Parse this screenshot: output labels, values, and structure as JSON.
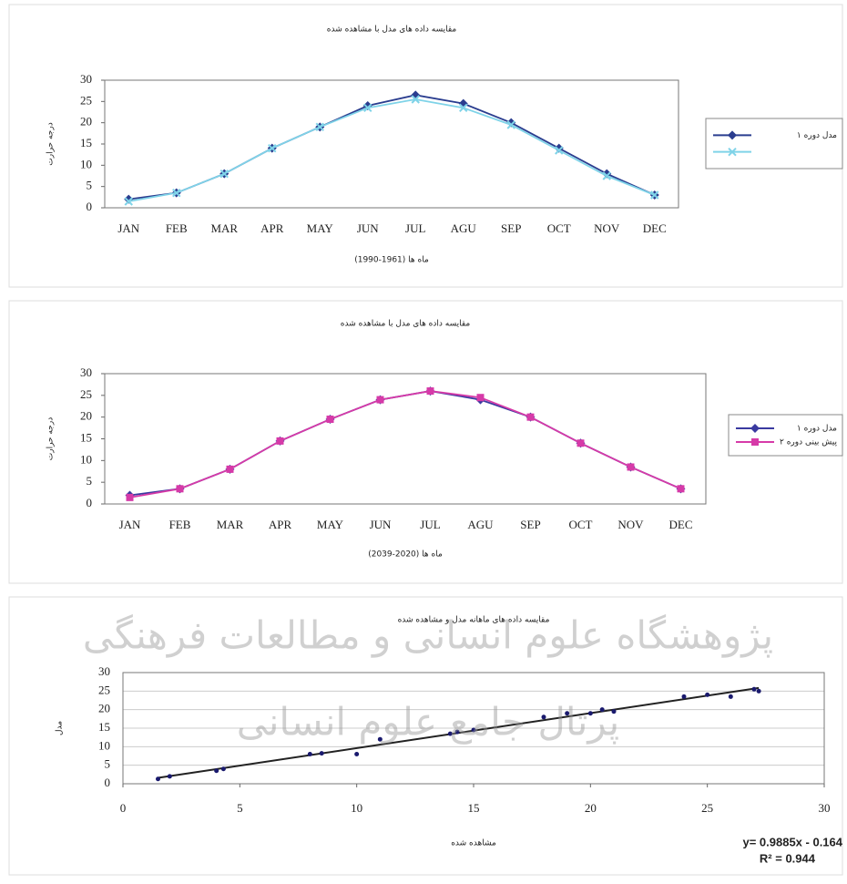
{
  "chart_data": [
    {
      "type": "line",
      "title": "مقایسه داده های مدل با مشاهده شده",
      "y_label": "درجه حرارت",
      "x_label": "ماه ها (1961-1990)",
      "categories": [
        "JAN",
        "FEB",
        "MAR",
        "APR",
        "MAY",
        "JUN",
        "JUL",
        "AGU",
        "SEP",
        "OCT",
        "NOV",
        "DEC"
      ],
      "series": [
        {
          "name": "مدل دوره ۱",
          "color": "#2a3d8f",
          "marker": "diamond",
          "values": [
            2,
            3.5,
            8,
            14,
            19,
            24,
            26.5,
            24.5,
            20,
            14,
            8,
            3
          ]
        },
        {
          "color": "#7fd3e8",
          "marker": "cross",
          "values": [
            1.5,
            3.5,
            8,
            14,
            19,
            23.5,
            25.5,
            23.5,
            19.5,
            13.5,
            7.5,
            3
          ]
        }
      ],
      "ylim": [
        0,
        30
      ],
      "yticks": [
        0,
        5,
        10,
        15,
        20,
        25,
        30
      ],
      "grid": false,
      "legend": "right"
    },
    {
      "type": "line",
      "title": "مقایسه داده های مدل با مشاهده شده",
      "y_label": "درجه حرارت",
      "x_label": "ماه ها (2020-2039)",
      "categories": [
        "JAN",
        "FEB",
        "MAR",
        "APR",
        "MAY",
        "JUN",
        "JUL",
        "AGU",
        "SEP",
        "OCT",
        "NOV",
        "DEC"
      ],
      "series": [
        {
          "name": "مدل دوره ۱",
          "color": "#3a3aa0",
          "marker": "diamond",
          "values": [
            2,
            3.5,
            8,
            14.5,
            19.5,
            24,
            26,
            24,
            20,
            14,
            8.5,
            3.5
          ]
        },
        {
          "name": "پیش بینی دوره ۲",
          "color": "#d63aa8",
          "marker": "square",
          "values": [
            1.5,
            3.5,
            8,
            14.5,
            19.5,
            24,
            26,
            24.5,
            20,
            14,
            8.5,
            3.5
          ]
        }
      ],
      "ylim": [
        0,
        30
      ],
      "yticks": [
        0,
        5,
        10,
        15,
        20,
        25,
        30
      ],
      "grid": false,
      "legend": "right"
    },
    {
      "type": "scatter",
      "title": "مقایسه داده های ماهانه مدل و مشاهده شده",
      "y_label": "مدل",
      "x_label": "مشاهده شده",
      "x": [
        1.5,
        2,
        4,
        4.3,
        8,
        8.5,
        10,
        11,
        14,
        14.3,
        15,
        18,
        19,
        20,
        20.5,
        21,
        24,
        25,
        26,
        27,
        27.2
      ],
      "values": [
        1.3,
        2,
        3.5,
        4,
        8,
        8.2,
        8,
        12,
        13.5,
        14,
        14.5,
        18,
        19,
        19,
        20,
        19.5,
        23.5,
        24,
        23.5,
        25.5,
        25
      ],
      "color": "#1a1a6e",
      "trendline": true,
      "trendline_color": "#222222",
      "equation": "y= 0.9885x - 0.164",
      "r_squared": "R² = 0.944",
      "xlim": [
        0,
        30
      ],
      "xticks": [
        0,
        5,
        10,
        15,
        20,
        25,
        30
      ],
      "ylim": [
        0,
        30
      ],
      "yticks": [
        0,
        5,
        10,
        15,
        20,
        25,
        30
      ],
      "grid": true
    },
    {
      "watermark": [
        "پژوهشگاه علوم انسانی و مطالعات فرهنگی",
        "پرتال جامع علوم انسانی"
      ]
    }
  ]
}
